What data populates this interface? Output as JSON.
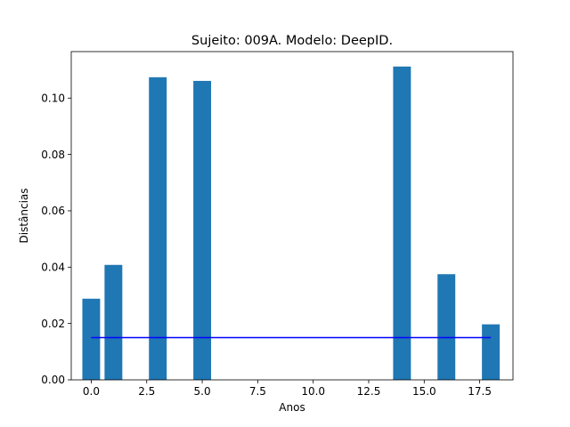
{
  "chart_data": {
    "type": "bar",
    "title": "Sujeito: 009A. Modelo: DeepID.",
    "xlabel": "Anos",
    "ylabel": "Distâncias",
    "xlim": [
      -0.9,
      19.0
    ],
    "ylim": [
      0,
      0.1165
    ],
    "x_ticks": [
      0.0,
      2.5,
      5.0,
      7.5,
      10.0,
      12.5,
      15.0,
      17.5
    ],
    "x_tick_labels": [
      "0.0",
      "2.5",
      "5.0",
      "7.5",
      "10.0",
      "12.5",
      "15.0",
      "17.5"
    ],
    "y_ticks": [
      0.0,
      0.02,
      0.04,
      0.06,
      0.08,
      0.1
    ],
    "y_tick_labels": [
      "0.00",
      "0.02",
      "0.04",
      "0.06",
      "0.08",
      "0.10"
    ],
    "bar_width": 0.8,
    "bar_color": "#1f77b4",
    "bars": [
      {
        "x": 0,
        "value": 0.0288
      },
      {
        "x": 1,
        "value": 0.0408
      },
      {
        "x": 3,
        "value": 0.1074
      },
      {
        "x": 5,
        "value": 0.1061
      },
      {
        "x": 14,
        "value": 0.1112
      },
      {
        "x": 16,
        "value": 0.0375
      },
      {
        "x": 18,
        "value": 0.0197
      }
    ],
    "threshold_line": {
      "x_start": 0,
      "x_end": 18,
      "y": 0.015,
      "color": "#0000ff"
    },
    "grid": false,
    "legend": "none"
  }
}
